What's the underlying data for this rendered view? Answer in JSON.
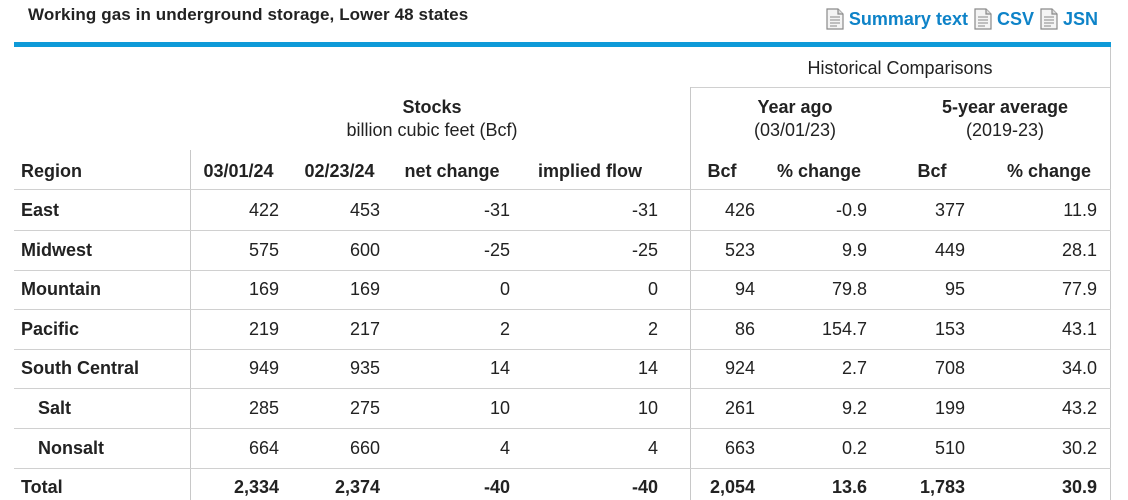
{
  "header": {
    "title": "Working gas in underground storage, Lower 48 states",
    "links": [
      {
        "label": "Summary text",
        "icon": "document-icon"
      },
      {
        "label": "CSV",
        "icon": "document-icon"
      },
      {
        "label": "JSN",
        "icon": "document-icon"
      }
    ]
  },
  "table": {
    "group_historical": "Historical Comparisons",
    "stocks_title": "Stocks",
    "stocks_unit": "billion cubic feet (Bcf)",
    "year_ago_title": "Year ago",
    "year_ago_date": "(03/01/23)",
    "five_year_title": "5-year average",
    "five_year_range": "(2019-23)",
    "columns": [
      "Region",
      "03/01/24",
      "02/23/24",
      "net change",
      "implied flow",
      "Bcf",
      "% change",
      "Bcf",
      "% change"
    ],
    "rows": [
      {
        "region": "East",
        "v": [
          "422",
          "453",
          "-31",
          "-31",
          "426",
          "-0.9",
          "377",
          "11.9"
        ]
      },
      {
        "region": "Midwest",
        "v": [
          "575",
          "600",
          "-25",
          "-25",
          "523",
          "9.9",
          "449",
          "28.1"
        ]
      },
      {
        "region": "Mountain",
        "v": [
          "169",
          "169",
          "0",
          "0",
          "94",
          "79.8",
          "95",
          "77.9"
        ]
      },
      {
        "region": "Pacific",
        "v": [
          "219",
          "217",
          "2",
          "2",
          "86",
          "154.7",
          "153",
          "43.1"
        ]
      },
      {
        "region": "South Central",
        "v": [
          "949",
          "935",
          "14",
          "14",
          "924",
          "2.7",
          "708",
          "34.0"
        ]
      },
      {
        "region": "Salt",
        "v": [
          "285",
          "275",
          "10",
          "10",
          "261",
          "9.2",
          "199",
          "43.2"
        ]
      },
      {
        "region": "Nonsalt",
        "v": [
          "664",
          "660",
          "4",
          "4",
          "663",
          "0.2",
          "510",
          "30.2"
        ]
      },
      {
        "region": "Total",
        "v": [
          "2,334",
          "2,374",
          "-40",
          "-40",
          "2,054",
          "13.6",
          "1,783",
          "30.9"
        ]
      }
    ]
  },
  "colors": {
    "accent": "#0e9ad8",
    "link": "#0e83c8",
    "text": "#222222"
  }
}
